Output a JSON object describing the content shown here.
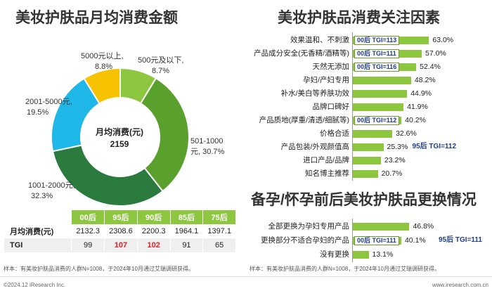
{
  "titles": {
    "left": "美妆护肤品月均消费金额",
    "right_top": "美妆护肤品消费关注因素",
    "right_bottom": "备孕/怀孕前后美妆护肤品更换情况"
  },
  "donut": {
    "center_label": "月均消费(元)",
    "center_value": "2159",
    "colors": [
      "#8dc63f",
      "#5aa02c",
      "#2b7b3f",
      "#1fb6e8",
      "#f7c200"
    ],
    "labels": [
      {
        "line1": "500元及以下,",
        "line2": "8.7%"
      },
      {
        "line1": "501-1000",
        "line2": "元, 30.7%"
      },
      {
        "line1": "1001-2000元,",
        "line2": "32.3%"
      },
      {
        "line1": "2001-5000元,",
        "line2": "19.5%"
      },
      {
        "line1": "5000元以上,",
        "line2": "8.8%"
      }
    ]
  },
  "table": {
    "headers": [
      "",
      "00后",
      "95后",
      "90后",
      "85后",
      "75后"
    ],
    "rows": [
      {
        "label": "月均消费(元)",
        "values": [
          "2132.3",
          "2308.6",
          "2200.3",
          "1964.1",
          "1397.1"
        ]
      },
      {
        "label": "TGI",
        "values": [
          "99",
          "107",
          "102",
          "91",
          "65"
        ]
      }
    ]
  },
  "notes": {
    "left": "样本：有美妆护肤品消费的人群N=1008，于2024年10月通过艾瑞调研获得。",
    "right": "样本：有美妆护肤品消费的人群N=1008，于2024年10月通过艾瑞调研获得。"
  },
  "footer": {
    "left": "©2024.12 iResearch Inc.",
    "right": "www.iresearch.com.cn"
  },
  "factors_tgi": [
    "00后 TGI=113",
    "00后 TGI=111",
    "00后 TGI=116",
    "00后 TGI=112",
    "95后 TGI=112"
  ],
  "switch_tgi": [
    "00后 TGI=111",
    "95后 TGI=111"
  ],
  "chart_data": [
    {
      "type": "pie",
      "title": "美妆护肤品月均消费金额",
      "categories": [
        "500元及以下",
        "501-1000元",
        "1001-2000元",
        "2001-5000元",
        "5000元以上"
      ],
      "values": [
        8.7,
        30.7,
        32.3,
        19.5,
        8.8
      ],
      "unit": "%"
    },
    {
      "type": "bar",
      "title": "美妆护肤品消费关注因素",
      "categories": [
        "效果温和、不刺激",
        "产品成分安全(无香精/酒精等)",
        "天然无添加",
        "孕妇/产妇专用",
        "补水/美白等养肤功效",
        "品牌口碑好",
        "产品质地(厚重/清透/细腻等)",
        "价格合适",
        "产品包装/外观颜值高",
        "进口产品/品牌",
        "知名博主推荐"
      ],
      "values": [
        63.0,
        57.0,
        52.4,
        48.2,
        44.9,
        41.9,
        40.2,
        32.6,
        25.3,
        23.2,
        20.7
      ],
      "unit": "%",
      "xlim": [
        0,
        70
      ]
    },
    {
      "type": "bar",
      "title": "备孕/怀孕前后美妆护肤品更换情况",
      "categories": [
        "全部更换为孕妇专用产品",
        "更换部分不适合孕妇的产品",
        "没有更换"
      ],
      "values": [
        46.8,
        40.1,
        13.1
      ],
      "unit": "%",
      "xlim": [
        0,
        70
      ]
    }
  ]
}
